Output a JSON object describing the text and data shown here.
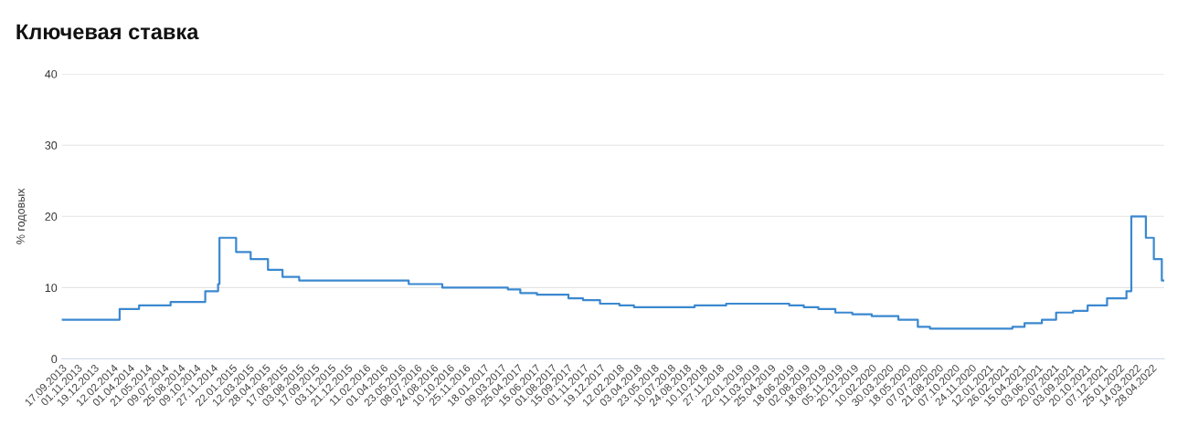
{
  "chart_data": {
    "type": "step",
    "title": "Ключевая ставка",
    "ylabel": "% годовых",
    "x": [
      "2013-09-17",
      "2014-03-03",
      "2014-04-28",
      "2014-07-28",
      "2014-11-05",
      "2014-12-12",
      "2014-12-16",
      "2015-02-02",
      "2015-03-16",
      "2015-05-05",
      "2015-06-16",
      "2015-08-03",
      "2016-06-14",
      "2016-09-19",
      "2017-03-27",
      "2017-05-02",
      "2017-06-19",
      "2017-09-18",
      "2017-10-30",
      "2017-12-18",
      "2018-02-12",
      "2018-03-26",
      "2018-09-17",
      "2018-12-17",
      "2019-06-17",
      "2019-07-29",
      "2019-09-09",
      "2019-10-28",
      "2019-12-16",
      "2020-02-10",
      "2020-04-27",
      "2020-06-22",
      "2020-07-27",
      "2021-03-22",
      "2021-04-26",
      "2021-06-15",
      "2021-07-26",
      "2021-09-13",
      "2021-10-25",
      "2021-12-20",
      "2022-02-14",
      "2022-02-28",
      "2022-04-11",
      "2022-05-04",
      "2022-05-27",
      "2022-06-03"
    ],
    "series": [
      {
        "color": "#3b88d0",
        "values": [
          5.5,
          7,
          7.5,
          8,
          9.5,
          10.5,
          17,
          15,
          14,
          12.5,
          11.5,
          11,
          10.5,
          10,
          9.75,
          9.25,
          9,
          8.5,
          8.25,
          7.75,
          7.5,
          7.25,
          7.5,
          7.75,
          7.5,
          7.25,
          7,
          6.5,
          6.25,
          6,
          5.5,
          4.5,
          4.25,
          4.5,
          5,
          5.5,
          6.5,
          6.75,
          7.5,
          8.5,
          9.5,
          20,
          17,
          14,
          11,
          11
        ]
      }
    ],
    "xlim": [
      "2013-09-17",
      "2022-06-03"
    ],
    "xticks": [
      {
        "value": "2013-09-17",
        "label": "17.09.2013"
      },
      {
        "value": "2013-11-01",
        "label": "01.11.2013"
      },
      {
        "value": "2013-12-19",
        "label": "19.12.2013"
      },
      {
        "value": "2014-02-12",
        "label": "12.02.2014"
      },
      {
        "value": "2014-04-01",
        "label": "01.04.2014"
      },
      {
        "value": "2014-05-21",
        "label": "21.05.2014"
      },
      {
        "value": "2014-07-09",
        "label": "09.07.2014"
      },
      {
        "value": "2014-08-25",
        "label": "25.08.2014"
      },
      {
        "value": "2014-10-09",
        "label": "09.10.2014"
      },
      {
        "value": "2014-11-27",
        "label": "27.11.2014"
      },
      {
        "value": "2015-01-22",
        "label": "22.01.2015"
      },
      {
        "value": "2015-03-12",
        "label": "12.03.2015"
      },
      {
        "value": "2015-04-28",
        "label": "28.04.2015"
      },
      {
        "value": "2015-06-17",
        "label": "17.06.2015"
      },
      {
        "value": "2015-08-03",
        "label": "03.08.2015"
      },
      {
        "value": "2015-09-17",
        "label": "17.09.2015"
      },
      {
        "value": "2015-11-03",
        "label": "03.11.2015"
      },
      {
        "value": "2015-12-21",
        "label": "21.12.2015"
      },
      {
        "value": "2016-02-11",
        "label": "11.02.2016"
      },
      {
        "value": "2016-04-01",
        "label": "01.04.2016"
      },
      {
        "value": "2016-05-23",
        "label": "23.05.2016"
      },
      {
        "value": "2016-07-08",
        "label": "08.07.2016"
      },
      {
        "value": "2016-08-24",
        "label": "24.08.2016"
      },
      {
        "value": "2016-10-10",
        "label": "10.10.2016"
      },
      {
        "value": "2016-11-25",
        "label": "25.11.2016"
      },
      {
        "value": "2017-01-18",
        "label": "18.01.2017"
      },
      {
        "value": "2017-03-09",
        "label": "09.03.2017"
      },
      {
        "value": "2017-04-25",
        "label": "25.04.2017"
      },
      {
        "value": "2017-06-15",
        "label": "15.06.2017"
      },
      {
        "value": "2017-08-01",
        "label": "01.08.2017"
      },
      {
        "value": "2017-09-15",
        "label": "15.09.2017"
      },
      {
        "value": "2017-11-01",
        "label": "01.11.2017"
      },
      {
        "value": "2017-12-19",
        "label": "19.12.2017"
      },
      {
        "value": "2018-02-12",
        "label": "12.02.2018"
      },
      {
        "value": "2018-04-03",
        "label": "03.04.2018"
      },
      {
        "value": "2018-05-23",
        "label": "23.05.2018"
      },
      {
        "value": "2018-07-10",
        "label": "10.07.2018"
      },
      {
        "value": "2018-08-24",
        "label": "24.08.2018"
      },
      {
        "value": "2018-10-10",
        "label": "10.10.2018"
      },
      {
        "value": "2018-11-27",
        "label": "27.11.2018"
      },
      {
        "value": "2019-01-22",
        "label": "22.01.2019"
      },
      {
        "value": "2019-03-11",
        "label": "11.03.2019"
      },
      {
        "value": "2019-04-25",
        "label": "25.04.2019"
      },
      {
        "value": "2019-06-18",
        "label": "18.06.2019"
      },
      {
        "value": "2019-08-02",
        "label": "02.08.2019"
      },
      {
        "value": "2019-09-18",
        "label": "18.09.2019"
      },
      {
        "value": "2019-11-05",
        "label": "05.11.2019"
      },
      {
        "value": "2019-12-20",
        "label": "20.12.2019"
      },
      {
        "value": "2020-02-10",
        "label": "10.02.2020"
      },
      {
        "value": "2020-03-30",
        "label": "30.03.2020"
      },
      {
        "value": "2020-05-18",
        "label": "18.05.2020"
      },
      {
        "value": "2020-07-07",
        "label": "07.07.2020"
      },
      {
        "value": "2020-08-21",
        "label": "21.08.2020"
      },
      {
        "value": "2020-10-07",
        "label": "07.10.2020"
      },
      {
        "value": "2020-11-24",
        "label": "24.11.2020"
      },
      {
        "value": "2021-01-12",
        "label": "12.01.2021"
      },
      {
        "value": "2021-02-26",
        "label": "26.02.2021"
      },
      {
        "value": "2021-04-15",
        "label": "15.04.2021"
      },
      {
        "value": "2021-06-03",
        "label": "03.06.2021"
      },
      {
        "value": "2021-07-20",
        "label": "20.07.2021"
      },
      {
        "value": "2021-09-03",
        "label": "03.09.2021"
      },
      {
        "value": "2021-10-20",
        "label": "20.10.2021"
      },
      {
        "value": "2021-12-07",
        "label": "07.12.2021"
      },
      {
        "value": "2022-01-25",
        "label": "25.01.2022"
      },
      {
        "value": "2022-03-14",
        "label": "14.03.2022"
      },
      {
        "value": "2022-04-28",
        "label": "28.04.2022"
      }
    ],
    "ylim": [
      0,
      40
    ],
    "yticks": [
      0,
      10,
      20,
      30,
      40
    ],
    "grid": "y",
    "legend": false
  }
}
